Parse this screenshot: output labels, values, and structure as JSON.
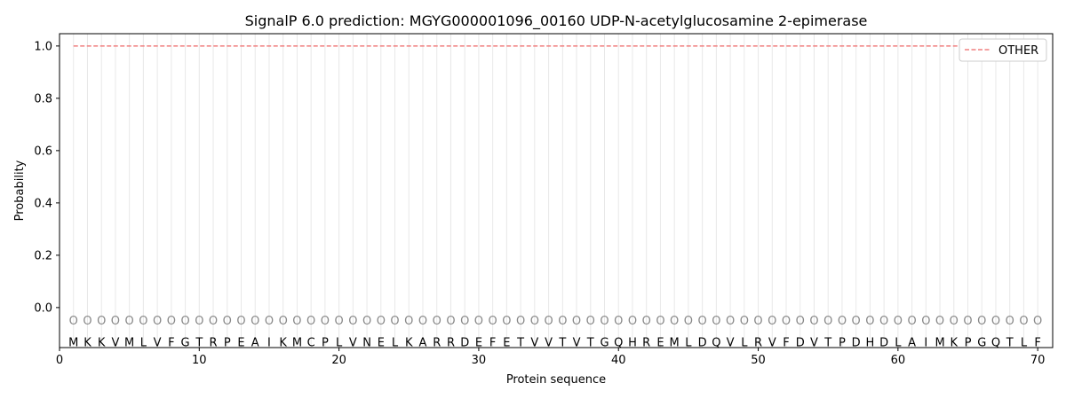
{
  "chart_data": {
    "type": "line",
    "title": "SignalP 6.0 prediction: MGYG000001096_00160 UDP-N-acetylglucosamine 2-epimerase",
    "xlabel": "Protein sequence",
    "ylabel": "Probability",
    "xlim": [
      0,
      71.07
    ],
    "ylim": [
      -0.153,
      1.047
    ],
    "xticks": [
      0,
      10,
      20,
      30,
      40,
      50,
      60,
      70
    ],
    "yticks": [
      0.0,
      0.2,
      0.4,
      0.6,
      0.8,
      1.0
    ],
    "sequence": "MKKVMLVFGTRPEAIKMCPLVNELKARRDEFETVVTVTGQHREMLDQVLRVFDVTPDHDLAIMKPGQTLF",
    "marker_label": "O",
    "legend_position": "top-right",
    "series": [
      {
        "name": "OTHER",
        "color": "#f08080",
        "style": "dashed",
        "x_range": [
          1,
          70
        ],
        "value": 1.0
      }
    ]
  }
}
